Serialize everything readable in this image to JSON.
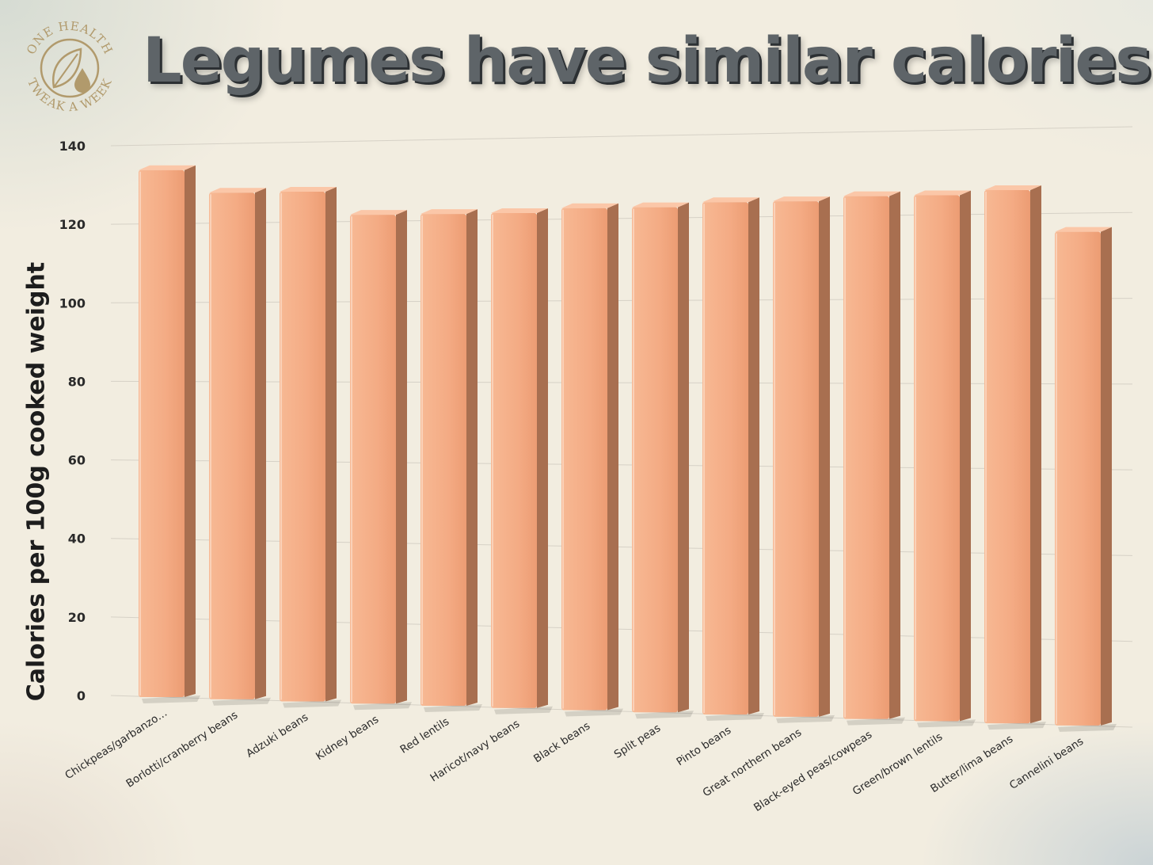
{
  "title": "Legumes have similar calories",
  "logo": {
    "text_top": "ONE HEALTH",
    "text_bottom": "TWEAK A WEEK",
    "icon": "leaf-and-water-drop-icon",
    "color": "#b19a6c"
  },
  "colors": {
    "bar_front": "#f4ab84",
    "bar_side": "#a86f50",
    "bar_top": "#fbc7a8",
    "title": "#5e6468"
  },
  "chart_data": {
    "type": "bar",
    "title": "Legumes have similar calories",
    "xlabel": "",
    "ylabel": "Calories per 100g cooked weight",
    "ylim": [
      0,
      140
    ],
    "yticks": [
      0,
      20,
      40,
      60,
      80,
      100,
      120,
      140
    ],
    "grid": true,
    "legend": "none",
    "categories": [
      "Chickpeas/garbanzo…",
      "Borlotti/cranberry beans",
      "Adzuki beans",
      "Kidney beans",
      "Red lentils",
      "Haricot/navy beans",
      "Black beans",
      "Split peas",
      "Pinto beans",
      "Great northern beans",
      "Black-eyed peas/cowpeas",
      "Green/brown lentils",
      "Butter/lima beans",
      "Cannelini beans"
    ],
    "values": [
      134,
      128,
      128,
      122,
      122,
      122,
      123,
      123,
      124,
      124,
      125,
      125,
      126,
      116
    ]
  }
}
